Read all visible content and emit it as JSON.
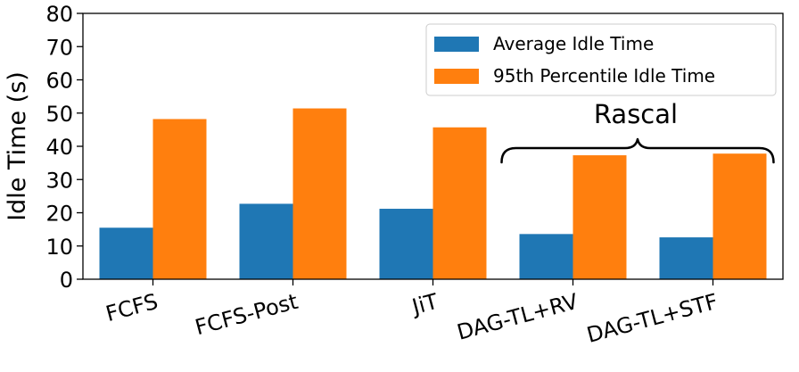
{
  "chart_data": {
    "type": "bar",
    "title": "",
    "xlabel": "",
    "ylabel": "Idle Time (s)",
    "ylim": [
      0,
      80
    ],
    "yticks": [
      0,
      10,
      20,
      30,
      40,
      50,
      60,
      70,
      80
    ],
    "categories": [
      "FCFS",
      "FCFS-Post",
      "JiT",
      "DAG-TL+RV",
      "DAG-TL+STF"
    ],
    "series": [
      {
        "name": "Average Idle Time",
        "color": "#1f77b4",
        "values": [
          15.5,
          22.7,
          21.2,
          13.6,
          12.6
        ]
      },
      {
        "name": "95th Percentile Idle Time",
        "color": "#ff7f0e",
        "values": [
          48.2,
          51.4,
          45.7,
          37.3,
          37.8
        ]
      }
    ],
    "legend_position": "top-right",
    "annotation": {
      "text": "Rascal",
      "spans_categories": [
        "DAG-TL+RV",
        "DAG-TL+STF"
      ]
    }
  }
}
